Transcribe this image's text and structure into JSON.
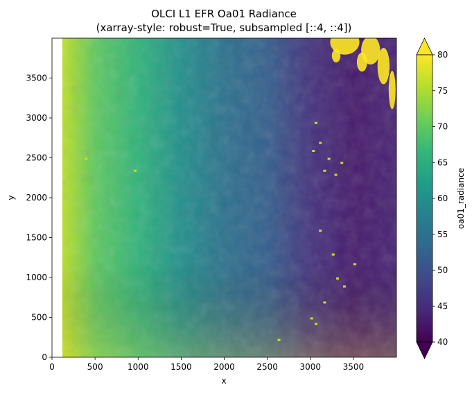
{
  "chart_data": {
    "type": "heatmap",
    "title_line1": "OLCI L1 EFR Oa01 Radiance",
    "title_line2": "(xarray-style: robust=True, subsampled [::4, ::4])",
    "xlabel": "x",
    "ylabel": "y",
    "xlim": [
      0,
      4000
    ],
    "ylim": [
      0,
      4000
    ],
    "x_ticks": [
      0,
      500,
      1000,
      1500,
      2000,
      2500,
      3000,
      3500
    ],
    "y_ticks": [
      0,
      500,
      1000,
      1500,
      2000,
      2500,
      3000,
      3500
    ],
    "colorbar": {
      "label": "oa01_radiance",
      "range": [
        40,
        80
      ],
      "ticks": [
        40,
        45,
        50,
        55,
        60,
        65,
        70,
        75,
        80
      ],
      "extend": "both",
      "colormap": "viridis"
    },
    "colormap_stops": [
      "#440154",
      "#482878",
      "#3e4a89",
      "#31688e",
      "#26828e",
      "#1f9e89",
      "#35b779",
      "#6ece58",
      "#b5de2b",
      "#fde725"
    ],
    "gradient_profile": {
      "description_x_positions_in_data_units": [
        100,
        500,
        1000,
        1500,
        2000,
        2500,
        3000,
        3500,
        3960
      ],
      "approx_values": [
        76,
        70,
        66,
        60,
        55,
        52,
        46,
        43,
        44
      ]
    },
    "nodata_left_x_max": 120
  }
}
